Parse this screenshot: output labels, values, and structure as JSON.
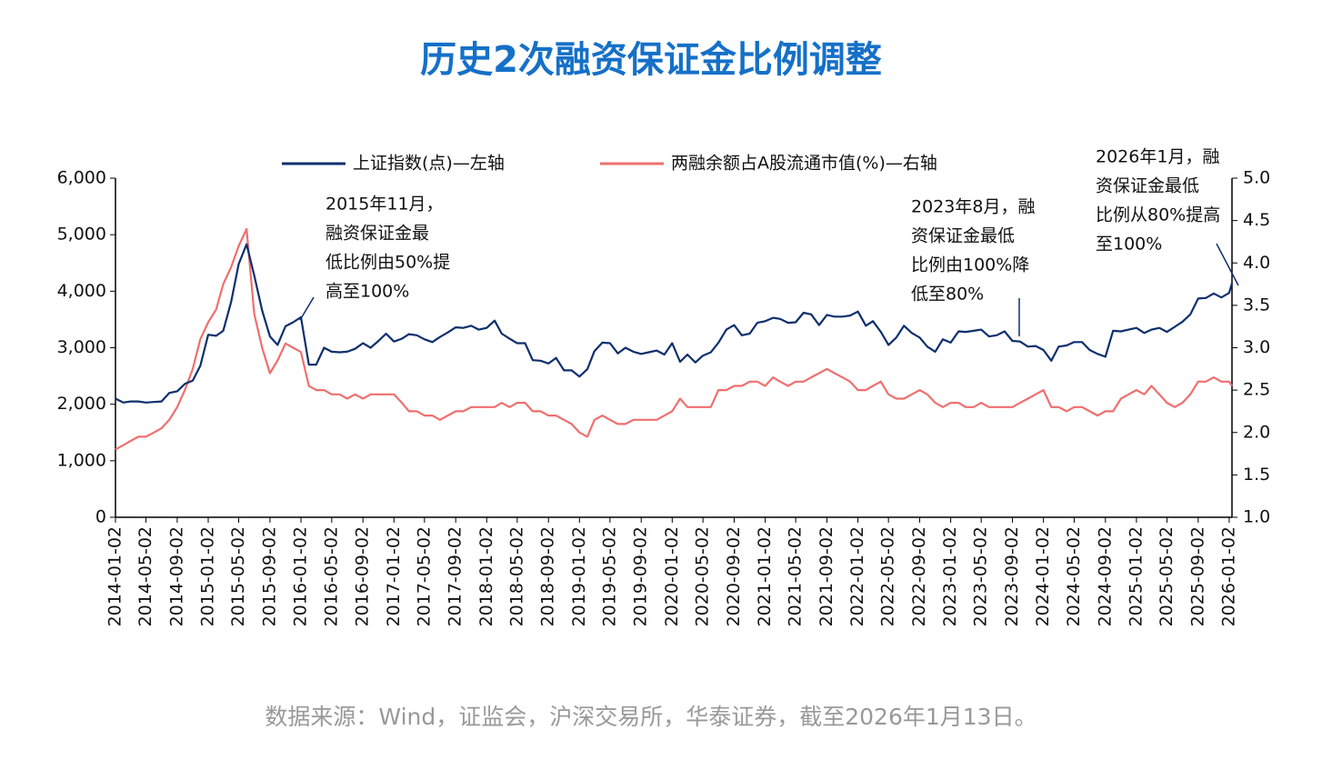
{
  "chart_data": {
    "type": "line",
    "title": "历史2次融资保证金比例调整",
    "source": "数据来源：Wind，证监会，沪深交易所，华泰证券，截至2026年1月13日。",
    "x": [
      "2014-01-02",
      "2014-02-02",
      "2014-03-02",
      "2014-04-02",
      "2014-05-02",
      "2014-06-02",
      "2014-07-02",
      "2014-08-02",
      "2014-09-02",
      "2014-10-02",
      "2014-11-02",
      "2014-12-02",
      "2015-01-02",
      "2015-02-02",
      "2015-03-02",
      "2015-04-02",
      "2015-05-02",
      "2015-06-02",
      "2015-07-02",
      "2015-08-02",
      "2015-09-02",
      "2015-10-02",
      "2015-11-02",
      "2015-12-02",
      "2016-01-02",
      "2016-02-02",
      "2016-03-02",
      "2016-04-02",
      "2016-05-02",
      "2016-06-02",
      "2016-07-02",
      "2016-08-02",
      "2016-09-02",
      "2016-10-02",
      "2016-11-02",
      "2016-12-02",
      "2017-01-02",
      "2017-02-02",
      "2017-03-02",
      "2017-04-02",
      "2017-05-02",
      "2017-06-02",
      "2017-07-02",
      "2017-08-02",
      "2017-09-02",
      "2017-10-02",
      "2017-11-02",
      "2017-12-02",
      "2018-01-02",
      "2018-02-02",
      "2018-03-02",
      "2018-04-02",
      "2018-05-02",
      "2018-06-02",
      "2018-07-02",
      "2018-08-02",
      "2018-09-02",
      "2018-10-02",
      "2018-11-02",
      "2018-12-02",
      "2019-01-02",
      "2019-02-02",
      "2019-03-02",
      "2019-04-02",
      "2019-05-02",
      "2019-06-02",
      "2019-07-02",
      "2019-08-02",
      "2019-09-02",
      "2019-10-02",
      "2019-11-02",
      "2019-12-02",
      "2020-01-02",
      "2020-02-02",
      "2020-03-02",
      "2020-04-02",
      "2020-05-02",
      "2020-06-02",
      "2020-07-02",
      "2020-08-02",
      "2020-09-02",
      "2020-10-02",
      "2020-11-02",
      "2020-12-02",
      "2021-01-02",
      "2021-02-02",
      "2021-03-02",
      "2021-04-02",
      "2021-05-02",
      "2021-06-02",
      "2021-07-02",
      "2021-08-02",
      "2021-09-02",
      "2021-10-02",
      "2021-11-02",
      "2021-12-02",
      "2022-01-02",
      "2022-02-02",
      "2022-03-02",
      "2022-04-02",
      "2022-05-02",
      "2022-06-02",
      "2022-07-02",
      "2022-08-02",
      "2022-09-02",
      "2022-10-02",
      "2022-11-02",
      "2022-12-02",
      "2023-01-02",
      "2023-02-02",
      "2023-03-02",
      "2023-04-02",
      "2023-05-02",
      "2023-06-02",
      "2023-07-02",
      "2023-08-02",
      "2023-09-02",
      "2023-10-02",
      "2023-11-02",
      "2023-12-02",
      "2024-01-02",
      "2024-02-02",
      "2024-03-02",
      "2024-04-02",
      "2024-05-02",
      "2024-06-02",
      "2024-07-02",
      "2024-08-02",
      "2024-09-02",
      "2024-10-02",
      "2024-11-02",
      "2024-12-02",
      "2025-01-02",
      "2025-02-02",
      "2025-03-02",
      "2025-04-02",
      "2025-05-02",
      "2025-06-02",
      "2025-07-02",
      "2025-08-02",
      "2025-09-02",
      "2025-10-02",
      "2025-11-02",
      "2025-12-02",
      "2026-01-02",
      "2026-01-13"
    ],
    "series": [
      {
        "name": "上证指数(点)—左轴",
        "color": "#0d2f6e",
        "values": [
          2100,
          2030,
          2050,
          2050,
          2030,
          2040,
          2050,
          2200,
          2230,
          2360,
          2420,
          2680,
          3230,
          3210,
          3300,
          3810,
          4480,
          4830,
          4280,
          3660,
          3200,
          3050,
          3380,
          3450,
          3540,
          2700,
          2700,
          3000,
          2930,
          2920,
          2930,
          2980,
          3080,
          3000,
          3120,
          3250,
          3110,
          3160,
          3240,
          3220,
          3150,
          3100,
          3190,
          3270,
          3360,
          3350,
          3390,
          3320,
          3350,
          3480,
          3250,
          3160,
          3080,
          3080,
          2780,
          2770,
          2720,
          2820,
          2600,
          2600,
          2490,
          2620,
          2940,
          3090,
          3080,
          2900,
          3000,
          2930,
          2890,
          2920,
          2950,
          2880,
          3080,
          2750,
          2880,
          2740,
          2860,
          2920,
          3090,
          3320,
          3400,
          3220,
          3250,
          3440,
          3470,
          3530,
          3510,
          3440,
          3450,
          3620,
          3590,
          3400,
          3580,
          3550,
          3550,
          3570,
          3640,
          3390,
          3470,
          3280,
          3050,
          3180,
          3390,
          3260,
          3180,
          3020,
          2930,
          3150,
          3090,
          3290,
          3280,
          3300,
          3320,
          3200,
          3220,
          3290,
          3120,
          3110,
          3020,
          3030,
          2960,
          2770,
          3020,
          3040,
          3100,
          3100,
          2960,
          2890,
          2840,
          3300,
          3290,
          3320,
          3350,
          3260,
          3320,
          3350,
          3280,
          3370,
          3460,
          3590,
          3870,
          3880,
          3960,
          3890,
          3970,
          4140
        ]
      },
      {
        "name": "两融余额占A股流通市值(%)—右轴",
        "color": "#ef6f6f",
        "axis": "y2",
        "values": [
          1.8,
          1.85,
          1.9,
          1.95,
          1.95,
          2.0,
          2.05,
          2.15,
          2.3,
          2.5,
          2.75,
          3.1,
          3.3,
          3.45,
          3.75,
          3.95,
          4.2,
          4.4,
          3.4,
          3.0,
          2.7,
          2.85,
          3.05,
          3.0,
          2.95,
          2.55,
          2.5,
          2.5,
          2.45,
          2.45,
          2.4,
          2.45,
          2.4,
          2.45,
          2.45,
          2.45,
          2.45,
          2.35,
          2.25,
          2.25,
          2.2,
          2.2,
          2.15,
          2.2,
          2.25,
          2.25,
          2.3,
          2.3,
          2.3,
          2.3,
          2.35,
          2.3,
          2.35,
          2.35,
          2.25,
          2.25,
          2.2,
          2.2,
          2.15,
          2.1,
          2.0,
          1.95,
          2.15,
          2.2,
          2.15,
          2.1,
          2.1,
          2.15,
          2.15,
          2.15,
          2.15,
          2.2,
          2.25,
          2.4,
          2.3,
          2.3,
          2.3,
          2.3,
          2.5,
          2.5,
          2.55,
          2.55,
          2.6,
          2.6,
          2.55,
          2.65,
          2.6,
          2.55,
          2.6,
          2.6,
          2.65,
          2.7,
          2.75,
          2.7,
          2.65,
          2.6,
          2.5,
          2.5,
          2.55,
          2.6,
          2.45,
          2.4,
          2.4,
          2.45,
          2.5,
          2.45,
          2.35,
          2.3,
          2.35,
          2.35,
          2.3,
          2.3,
          2.35,
          2.3,
          2.3,
          2.3,
          2.3,
          2.35,
          2.4,
          2.45,
          2.5,
          2.3,
          2.3,
          2.25,
          2.3,
          2.3,
          2.25,
          2.2,
          2.25,
          2.25,
          2.4,
          2.45,
          2.5,
          2.45,
          2.55,
          2.45,
          2.35,
          2.3,
          2.35,
          2.45,
          2.6,
          2.6,
          2.65,
          2.6,
          2.6,
          2.55
        ]
      }
    ],
    "xlim": [
      "2014-01-02",
      "2026-01-13"
    ],
    "xticks": [
      "2014-01-02",
      "2014-05-02",
      "2014-09-02",
      "2015-01-02",
      "2015-05-02",
      "2015-09-02",
      "2016-01-02",
      "2016-05-02",
      "2016-09-02",
      "2017-01-02",
      "2017-05-02",
      "2017-09-02",
      "2018-01-02",
      "2018-05-02",
      "2018-09-02",
      "2019-01-02",
      "2019-05-02",
      "2019-09-02",
      "2020-01-02",
      "2020-05-02",
      "2020-09-02",
      "2021-01-02",
      "2021-05-02",
      "2021-09-02",
      "2022-01-02",
      "2022-05-02",
      "2022-09-02",
      "2023-01-02",
      "2023-05-02",
      "2023-09-02",
      "2024-01-02",
      "2024-05-02",
      "2024-09-02",
      "2025-01-02",
      "2025-05-02",
      "2025-09-02",
      "2026-01-02"
    ],
    "ylim": [
      0,
      6000
    ],
    "yticks": [
      0,
      {
        "value": 1000,
        "label": "1,000"
      },
      {
        "value": 2000,
        "label": "2,000"
      },
      {
        "value": 3000,
        "label": "3,000"
      },
      {
        "value": 4000,
        "label": "4,000"
      },
      {
        "value": 5000,
        "label": "5,000"
      },
      {
        "value": 6000,
        "label": "6,000"
      }
    ],
    "y2lim": [
      1,
      5
    ],
    "y2ticks": [
      {
        "value": 1,
        "label": "1.0"
      },
      1.5,
      {
        "value": 2,
        "label": "2.0"
      },
      2.5,
      {
        "value": 3,
        "label": "3.0"
      },
      3.5,
      {
        "value": 4,
        "label": "4.0"
      },
      4.5,
      {
        "value": 5,
        "label": "5.0"
      }
    ],
    "annotations": [
      [
        "2015年11月，",
        "融资保证金最",
        "低比例由50%提",
        "高至100%"
      ],
      [
        "2023年8月，融",
        "资保证金最低",
        "比例由100%降",
        "低至80%"
      ],
      [
        "2026年1月，融",
        "资保证金最低",
        "比例从80%提高",
        "至100%"
      ]
    ]
  }
}
